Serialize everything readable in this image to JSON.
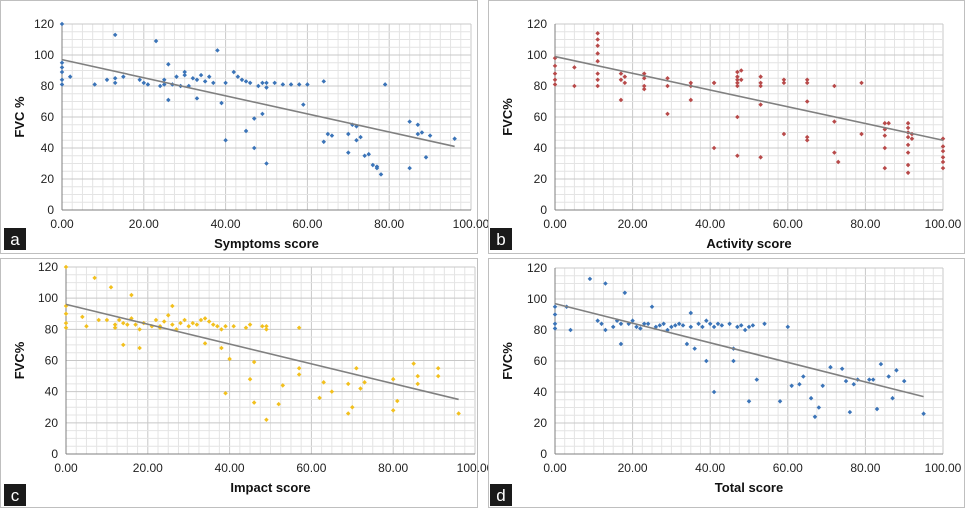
{
  "chart_data": [
    {
      "type": "scatter",
      "panel_label": "a",
      "xlabel": "Symptoms score",
      "ylabel": "FVC %",
      "xlim": [
        0,
        100
      ],
      "ylim": [
        0,
        120
      ],
      "x_ticks": [
        "0.00",
        "20.00",
        "40.00",
        "60.00",
        "80.00",
        "100.00"
      ],
      "y_ticks": [
        "0",
        "20",
        "40",
        "60",
        "80",
        "100",
        "120"
      ],
      "grid": true,
      "color": "#3b74b8",
      "trendline": [
        [
          0,
          97
        ],
        [
          96,
          41
        ]
      ],
      "points": [
        [
          0,
          120
        ],
        [
          0,
          95
        ],
        [
          0,
          92
        ],
        [
          0,
          89
        ],
        [
          0,
          84
        ],
        [
          0,
          81
        ],
        [
          2,
          86
        ],
        [
          8,
          81
        ],
        [
          11,
          84
        ],
        [
          13,
          113
        ],
        [
          13,
          82
        ],
        [
          13,
          85
        ],
        [
          15,
          86
        ],
        [
          19,
          84
        ],
        [
          20,
          82
        ],
        [
          21,
          81
        ],
        [
          23,
          109
        ],
        [
          24,
          80
        ],
        [
          25,
          84
        ],
        [
          25,
          81
        ],
        [
          26,
          94
        ],
        [
          26,
          71
        ],
        [
          27,
          81
        ],
        [
          28,
          86
        ],
        [
          29,
          80
        ],
        [
          30,
          87
        ],
        [
          30,
          89
        ],
        [
          31,
          80
        ],
        [
          32,
          85
        ],
        [
          33,
          72
        ],
        [
          33,
          84
        ],
        [
          34,
          87
        ],
        [
          35,
          83
        ],
        [
          36,
          86
        ],
        [
          37,
          82
        ],
        [
          38,
          103
        ],
        [
          39,
          69
        ],
        [
          40,
          82
        ],
        [
          40,
          45
        ],
        [
          42,
          89
        ],
        [
          43,
          86
        ],
        [
          44,
          84
        ],
        [
          45,
          51
        ],
        [
          45,
          83
        ],
        [
          46,
          82
        ],
        [
          47,
          40
        ],
        [
          47,
          59
        ],
        [
          48,
          80
        ],
        [
          49,
          62
        ],
        [
          49,
          82
        ],
        [
          50,
          82
        ],
        [
          50,
          30
        ],
        [
          50,
          79
        ],
        [
          52,
          82
        ],
        [
          54,
          81
        ],
        [
          56,
          81
        ],
        [
          58,
          81
        ],
        [
          59,
          68
        ],
        [
          60,
          81
        ],
        [
          64,
          44
        ],
        [
          64,
          83
        ],
        [
          65,
          49
        ],
        [
          66,
          48
        ],
        [
          70,
          49
        ],
        [
          70,
          37
        ],
        [
          71,
          55
        ],
        [
          72,
          54
        ],
        [
          72,
          45
        ],
        [
          73,
          47
        ],
        [
          74,
          35
        ],
        [
          75,
          36
        ],
        [
          76,
          29
        ],
        [
          77,
          28
        ],
        [
          77,
          27
        ],
        [
          78,
          23
        ],
        [
          79,
          81
        ],
        [
          85,
          57
        ],
        [
          85,
          27
        ],
        [
          87,
          49
        ],
        [
          87,
          55
        ],
        [
          88,
          50
        ],
        [
          89,
          34
        ],
        [
          90,
          48
        ],
        [
          96,
          46
        ]
      ]
    },
    {
      "type": "scatter",
      "panel_label": "b",
      "xlabel": "Activity score",
      "ylabel": "FVC%",
      "xlim": [
        0,
        100
      ],
      "ylim": [
        0,
        120
      ],
      "x_ticks": [
        "0.00",
        "20.00",
        "40.00",
        "60.00",
        "80.00",
        "100.00"
      ],
      "y_ticks": [
        "0",
        "20",
        "40",
        "60",
        "80",
        "100",
        "120"
      ],
      "grid": true,
      "color": "#b84a4a",
      "trendline": [
        [
          0,
          99
        ],
        [
          100,
          45
        ]
      ],
      "points": [
        [
          0,
          98
        ],
        [
          0,
          93
        ],
        [
          0,
          88
        ],
        [
          0,
          84
        ],
        [
          0,
          81
        ],
        [
          5,
          92
        ],
        [
          5,
          80
        ],
        [
          11,
          114
        ],
        [
          11,
          110
        ],
        [
          11,
          106
        ],
        [
          11,
          101
        ],
        [
          11,
          96
        ],
        [
          11,
          88
        ],
        [
          11,
          84
        ],
        [
          11,
          80
        ],
        [
          17,
          88
        ],
        [
          17,
          84
        ],
        [
          17,
          71
        ],
        [
          18,
          86
        ],
        [
          18,
          82
        ],
        [
          23,
          88
        ],
        [
          23,
          85
        ],
        [
          23,
          80
        ],
        [
          23,
          78
        ],
        [
          29,
          85
        ],
        [
          29,
          80
        ],
        [
          29,
          62
        ],
        [
          35,
          82
        ],
        [
          35,
          80
        ],
        [
          35,
          71
        ],
        [
          41,
          82
        ],
        [
          41,
          40
        ],
        [
          41,
          82
        ],
        [
          47,
          89
        ],
        [
          47,
          86
        ],
        [
          47,
          84
        ],
        [
          47,
          82
        ],
        [
          47,
          80
        ],
        [
          47,
          60
        ],
        [
          47,
          35
        ],
        [
          48,
          90
        ],
        [
          48,
          84
        ],
        [
          53,
          86
        ],
        [
          53,
          82
        ],
        [
          53,
          80
        ],
        [
          53,
          68
        ],
        [
          53,
          34
        ],
        [
          59,
          84
        ],
        [
          59,
          82
        ],
        [
          59,
          49
        ],
        [
          65,
          84
        ],
        [
          65,
          82
        ],
        [
          65,
          70
        ],
        [
          65,
          47
        ],
        [
          65,
          45
        ],
        [
          72,
          80
        ],
        [
          72,
          57
        ],
        [
          72,
          37
        ],
        [
          73,
          31
        ],
        [
          79,
          82
        ],
        [
          79,
          49
        ],
        [
          85,
          56
        ],
        [
          85,
          52
        ],
        [
          85,
          48
        ],
        [
          85,
          40
        ],
        [
          85,
          27
        ],
        [
          86,
          56
        ],
        [
          91,
          56
        ],
        [
          91,
          53
        ],
        [
          91,
          50
        ],
        [
          91,
          47
        ],
        [
          91,
          42
        ],
        [
          91,
          37
        ],
        [
          91,
          29
        ],
        [
          91,
          24
        ],
        [
          92,
          49
        ],
        [
          92,
          46
        ],
        [
          100,
          46
        ],
        [
          100,
          41
        ],
        [
          100,
          38
        ],
        [
          100,
          34
        ],
        [
          100,
          31
        ],
        [
          100,
          27
        ]
      ]
    },
    {
      "type": "scatter",
      "panel_label": "c",
      "xlabel": "Impact score",
      "ylabel": "FVC%",
      "xlim": [
        0,
        100
      ],
      "ylim": [
        0,
        120
      ],
      "x_ticks": [
        "0.00",
        "20.00",
        "40.00",
        "60.00",
        "80.00",
        "100.00"
      ],
      "y_ticks": [
        "0",
        "20",
        "40",
        "60",
        "80",
        "100",
        "120"
      ],
      "grid": true,
      "color": "#f2c01e",
      "trendline": [
        [
          0,
          96
        ],
        [
          96,
          35
        ]
      ],
      "points": [
        [
          0,
          120
        ],
        [
          0,
          95
        ],
        [
          0,
          90
        ],
        [
          0,
          84
        ],
        [
          0,
          81
        ],
        [
          4,
          88
        ],
        [
          5,
          82
        ],
        [
          7,
          113
        ],
        [
          8,
          86
        ],
        [
          10,
          86
        ],
        [
          11,
          107
        ],
        [
          12,
          83
        ],
        [
          12,
          81
        ],
        [
          13,
          86
        ],
        [
          14,
          70
        ],
        [
          14,
          84
        ],
        [
          15,
          83
        ],
        [
          16,
          87
        ],
        [
          16,
          102
        ],
        [
          17,
          83
        ],
        [
          18,
          80
        ],
        [
          18,
          68
        ],
        [
          19,
          84
        ],
        [
          21,
          82
        ],
        [
          22,
          86
        ],
        [
          23,
          82
        ],
        [
          23,
          81
        ],
        [
          24,
          85
        ],
        [
          25,
          89
        ],
        [
          26,
          83
        ],
        [
          26,
          95
        ],
        [
          27,
          80
        ],
        [
          28,
          84
        ],
        [
          29,
          86
        ],
        [
          30,
          82
        ],
        [
          31,
          84
        ],
        [
          32,
          83
        ],
        [
          33,
          86
        ],
        [
          34,
          87
        ],
        [
          34,
          71
        ],
        [
          35,
          85
        ],
        [
          36,
          83
        ],
        [
          37,
          82
        ],
        [
          38,
          80
        ],
        [
          38,
          68
        ],
        [
          39,
          82
        ],
        [
          39,
          39
        ],
        [
          40,
          61
        ],
        [
          41,
          82
        ],
        [
          44,
          81
        ],
        [
          45,
          48
        ],
        [
          45,
          83
        ],
        [
          46,
          33
        ],
        [
          46,
          59
        ],
        [
          48,
          82
        ],
        [
          49,
          82
        ],
        [
          49,
          80
        ],
        [
          49,
          22
        ],
        [
          52,
          32
        ],
        [
          53,
          44
        ],
        [
          57,
          55
        ],
        [
          57,
          51
        ],
        [
          57,
          81
        ],
        [
          62,
          36
        ],
        [
          63,
          46
        ],
        [
          65,
          40
        ],
        [
          69,
          26
        ],
        [
          69,
          45
        ],
        [
          70,
          30
        ],
        [
          71,
          55
        ],
        [
          72,
          42
        ],
        [
          73,
          46
        ],
        [
          80,
          48
        ],
        [
          80,
          28
        ],
        [
          81,
          34
        ],
        [
          85,
          58
        ],
        [
          86,
          50
        ],
        [
          86,
          45
        ],
        [
          91,
          55
        ],
        [
          91,
          50
        ],
        [
          96,
          26
        ]
      ]
    },
    {
      "type": "scatter",
      "panel_label": "d",
      "xlabel": "Total score",
      "ylabel": "FVC%",
      "xlim": [
        0,
        100
      ],
      "ylim": [
        0,
        120
      ],
      "x_ticks": [
        "0.00",
        "20.00",
        "40.00",
        "60.00",
        "80.00",
        "100.00"
      ],
      "y_ticks": [
        "0",
        "20",
        "40",
        "60",
        "80",
        "100",
        "120"
      ],
      "grid": true,
      "color": "#3b74b8",
      "trendline": [
        [
          0,
          97
        ],
        [
          95,
          37
        ]
      ],
      "points": [
        [
          0,
          95
        ],
        [
          0,
          90
        ],
        [
          0,
          84
        ],
        [
          0,
          81
        ],
        [
          3,
          95
        ],
        [
          4,
          80
        ],
        [
          9,
          113
        ],
        [
          11,
          86
        ],
        [
          12,
          84
        ],
        [
          13,
          110
        ],
        [
          13,
          80
        ],
        [
          15,
          82
        ],
        [
          16,
          86
        ],
        [
          17,
          84
        ],
        [
          17,
          71
        ],
        [
          18,
          104
        ],
        [
          19,
          84
        ],
        [
          20,
          86
        ],
        [
          21,
          82
        ],
        [
          22,
          81
        ],
        [
          23,
          84
        ],
        [
          24,
          84
        ],
        [
          25,
          95
        ],
        [
          26,
          82
        ],
        [
          27,
          83
        ],
        [
          28,
          84
        ],
        [
          29,
          80
        ],
        [
          30,
          82
        ],
        [
          31,
          83
        ],
        [
          32,
          84
        ],
        [
          33,
          83
        ],
        [
          34,
          71
        ],
        [
          35,
          82
        ],
        [
          35,
          91
        ],
        [
          36,
          68
        ],
        [
          37,
          84
        ],
        [
          38,
          82
        ],
        [
          39,
          60
        ],
        [
          39,
          86
        ],
        [
          40,
          84
        ],
        [
          41,
          40
        ],
        [
          41,
          82
        ],
        [
          42,
          84
        ],
        [
          43,
          83
        ],
        [
          45,
          84
        ],
        [
          46,
          68
        ],
        [
          46,
          60
        ],
        [
          47,
          82
        ],
        [
          48,
          83
        ],
        [
          49,
          80
        ],
        [
          50,
          34
        ],
        [
          50,
          82
        ],
        [
          51,
          83
        ],
        [
          52,
          48
        ],
        [
          54,
          84
        ],
        [
          58,
          34
        ],
        [
          60,
          82
        ],
        [
          61,
          44
        ],
        [
          63,
          45
        ],
        [
          64,
          50
        ],
        [
          66,
          36
        ],
        [
          67,
          24
        ],
        [
          68,
          30
        ],
        [
          69,
          44
        ],
        [
          71,
          56
        ],
        [
          74,
          55
        ],
        [
          75,
          47
        ],
        [
          76,
          27
        ],
        [
          77,
          45
        ],
        [
          78,
          48
        ],
        [
          81,
          48
        ],
        [
          82,
          48
        ],
        [
          83,
          29
        ],
        [
          84,
          58
        ],
        [
          86,
          50
        ],
        [
          87,
          36
        ],
        [
          88,
          54
        ],
        [
          90,
          47
        ],
        [
          95,
          26
        ]
      ]
    }
  ]
}
